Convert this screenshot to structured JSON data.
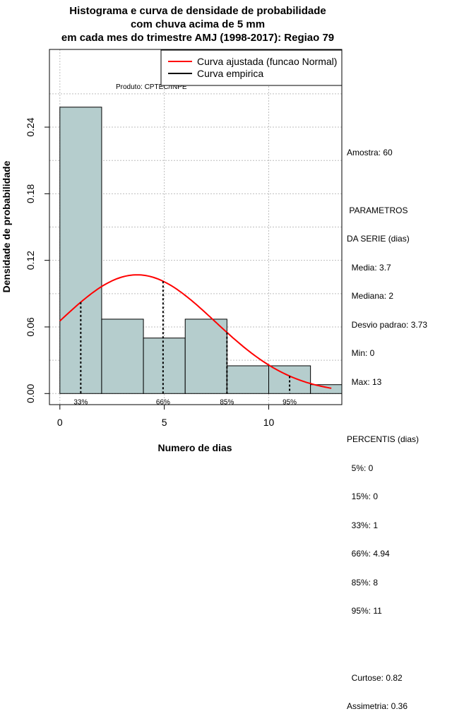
{
  "title_lines": [
    "Histograma e curva de densidade de probabilidade",
    "com chuva acima de 5 mm",
    "em cada mes do trimestre AMJ (1998-2017): Regiao 79"
  ],
  "product_label": "Produto: CPTEC/INPE",
  "stats": {
    "sample": "Amostra: 60",
    "params_header": [
      " PARAMETROS",
      "DA SERIE (dias)"
    ],
    "params": [
      "  Media: 3.7",
      "  Mediana: 2",
      "  Desvio padrao: 3.73",
      "  Min: 0",
      "  Max: 13"
    ],
    "percentis_header": "PERCENTIS (dias)",
    "percentis": [
      "  5%: 0",
      "  15%: 0",
      "  33%: 1",
      "  66%: 4.94",
      "  85%: 8",
      "  95%: 11"
    ],
    "shape": [
      "  Curtose: 0.82",
      "Assimetria: 0.36"
    ]
  },
  "chart_data": {
    "type": "histogram",
    "xlabel": "Numero de dias",
    "ylabel": "Densidade de probabilidade",
    "xlim": [
      -0.5,
      13.5
    ],
    "ylim": [
      -0.01,
      0.31
    ],
    "x_ticks": [
      0,
      5,
      10
    ],
    "y_ticks": [
      0.0,
      0.06,
      0.12,
      0.18,
      0.24
    ],
    "y_tick_labels": [
      "0.00",
      "0.06",
      "0.12",
      "0.18",
      "0.24"
    ],
    "bins": [
      {
        "from": 0,
        "to": 2,
        "density": 0.258
      },
      {
        "from": 2,
        "to": 4,
        "density": 0.067
      },
      {
        "from": 4,
        "to": 6,
        "density": 0.05
      },
      {
        "from": 6,
        "to": 8,
        "density": 0.067
      },
      {
        "from": 8,
        "to": 10,
        "density": 0.025
      },
      {
        "from": 10,
        "to": 12,
        "density": 0.025
      },
      {
        "from": 12,
        "to": 14,
        "density": 0.008
      }
    ],
    "bar_color": "#b5cdcd",
    "normal_curve": {
      "name": "Curva ajustada (funcao Normal)",
      "mean": 3.7,
      "sd": 3.73,
      "x_range": [
        0,
        13
      ],
      "color": "#ff0000"
    },
    "empirical_curve": {
      "name": "Curva empirica",
      "color": "#000000"
    },
    "percentile_markers": [
      {
        "label": "33%",
        "x": 1
      },
      {
        "label": "66%",
        "x": 4.94
      },
      {
        "label": "85%",
        "x": 8
      },
      {
        "label": "95%",
        "x": 11
      }
    ],
    "legend_position": "top-right"
  }
}
